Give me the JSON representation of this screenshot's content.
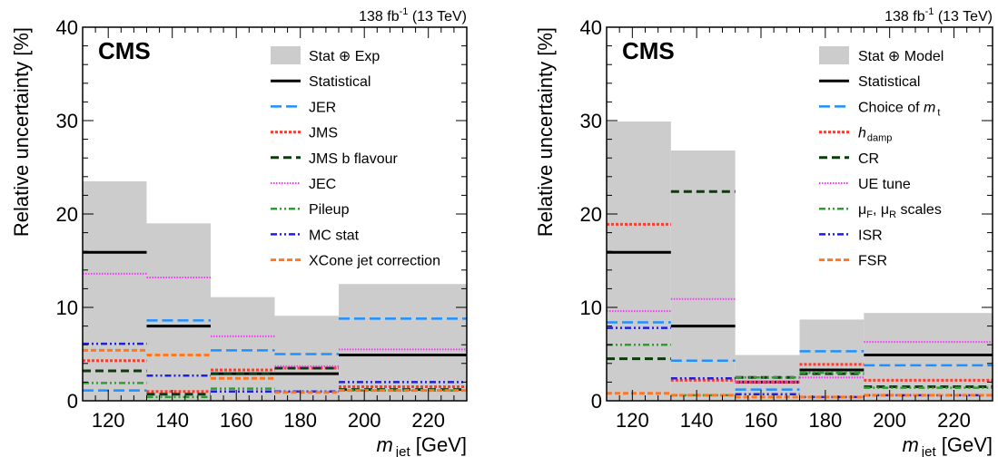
{
  "colors": {
    "band": "#cccccc",
    "statistical": "#000000",
    "jer": "#1e90ff",
    "jms": "#ff3b2f",
    "jms_b": "#0f3a0f",
    "jec": "#ff33ff",
    "pileup": "#2e9e2e",
    "mc_stat": "#1f1fe0",
    "xcone": "#ff7722"
  },
  "chart_data": [
    {
      "type": "step",
      "experiment": "CMS",
      "lumi": "138 fb",
      "lumi_exp": "-1",
      "energy": " (13 TeV)",
      "ylabel": "Relative uncertainty [%]",
      "xlabel_main": "m",
      "xlabel_sub": "jet",
      "xlabel_unit": " [GeV]",
      "xlim": [
        112,
        232
      ],
      "ylim": [
        0,
        40
      ],
      "xticks": [
        120,
        140,
        160,
        180,
        200,
        220
      ],
      "yticks": [
        0,
        10,
        20,
        30,
        40
      ],
      "bin_edges": [
        112,
        132,
        152,
        172,
        192,
        232
      ],
      "band": {
        "label": "Stat ⊕ Exp",
        "values": [
          23.5,
          19.0,
          11.1,
          9.1,
          12.5
        ]
      },
      "series": [
        {
          "name": "Statistical",
          "style": "solid",
          "color": "#000000",
          "values": [
            15.9,
            8.0,
            2.9,
            2.9,
            4.9
          ]
        },
        {
          "name": "JER",
          "style": "longdash",
          "color": "#1e90ff",
          "values": [
            1.1,
            8.6,
            5.4,
            5.0,
            8.8
          ]
        },
        {
          "name": "JMS",
          "style": "dotted",
          "color": "#ff3b2f",
          "values": [
            4.3,
            1.0,
            3.3,
            3.5,
            1.5
          ]
        },
        {
          "name": "JMS b flavour",
          "style": "dash",
          "color": "#0f3a0f",
          "values": [
            3.2,
            0.7,
            2.9,
            3.5,
            1.2
          ]
        },
        {
          "name": "JEC",
          "style": "densedot",
          "color": "#ff33ff",
          "values": [
            13.6,
            13.2,
            6.9,
            3.7,
            5.5
          ]
        },
        {
          "name": "Pileup",
          "style": "dashdotdot",
          "color": "#2e9e2e",
          "values": [
            1.9,
            0.4,
            1.3,
            1.0,
            1.1
          ]
        },
        {
          "name": "MC stat",
          "style": "dashdotdot",
          "color": "#1f1fe0",
          "values": [
            6.1,
            2.7,
            1.0,
            1.0,
            2.0
          ]
        },
        {
          "name": "XCone jet correction",
          "style": "shortdash",
          "color": "#ff7722",
          "values": [
            5.4,
            4.9,
            2.4,
            0.9,
            1.1
          ]
        }
      ]
    },
    {
      "type": "step",
      "experiment": "CMS",
      "lumi": "138 fb",
      "lumi_exp": "-1",
      "energy": " (13 TeV)",
      "ylabel": "Relative uncertainty [%]",
      "xlabel_main": "m",
      "xlabel_sub": "jet",
      "xlabel_unit": " [GeV]",
      "xlim": [
        112,
        232
      ],
      "ylim": [
        0,
        40
      ],
      "xticks": [
        120,
        140,
        160,
        180,
        200,
        220
      ],
      "yticks": [
        0,
        10,
        20,
        30,
        40
      ],
      "bin_edges": [
        112,
        132,
        152,
        172,
        192,
        232
      ],
      "band": {
        "label": "Stat ⊕ Model",
        "values": [
          29.9,
          26.8,
          4.9,
          8.7,
          9.4
        ]
      },
      "series": [
        {
          "name": "Statistical",
          "style": "solid",
          "color": "#000000",
          "values": [
            15.9,
            8.0,
            2.0,
            3.3,
            4.9
          ]
        },
        {
          "name": "Choice of m_t",
          "label_main": "Choice of ",
          "label_it": "m",
          "label_sub": "t",
          "style": "longdash",
          "color": "#1e90ff",
          "values": [
            8.4,
            4.3,
            1.2,
            5.3,
            3.8
          ]
        },
        {
          "name": "h_damp",
          "label_it": "h",
          "label_sub": "damp",
          "style": "dotted",
          "color": "#ff3b2f",
          "values": [
            18.9,
            2.2,
            2.0,
            3.9,
            2.2
          ]
        },
        {
          "name": "CR",
          "style": "dash",
          "color": "#0f3a0f",
          "values": [
            4.5,
            22.4,
            2.5,
            2.9,
            1.5
          ]
        },
        {
          "name": "UE tune",
          "style": "densedot",
          "color": "#ff33ff",
          "values": [
            9.6,
            10.9,
            2.0,
            2.5,
            6.3
          ]
        },
        {
          "name": "μF, μR scales",
          "label_mu1": "μ",
          "label_sub1": "F",
          "label_mid": ", μ",
          "label_sub2": "R",
          "label_tail": " scales",
          "style": "dashdotdot",
          "color": "#2e9e2e",
          "values": [
            6.0,
            0.6,
            2.5,
            3.0,
            1.4
          ]
        },
        {
          "name": "ISR",
          "style": "dashdotdot",
          "color": "#1f1fe0",
          "values": [
            7.8,
            2.4,
            0.7,
            0.4,
            0.6
          ]
        },
        {
          "name": "FSR",
          "style": "shortdash",
          "color": "#ff7722",
          "values": [
            0.8,
            0.6,
            0.4,
            0.4,
            0.6
          ]
        }
      ]
    }
  ]
}
